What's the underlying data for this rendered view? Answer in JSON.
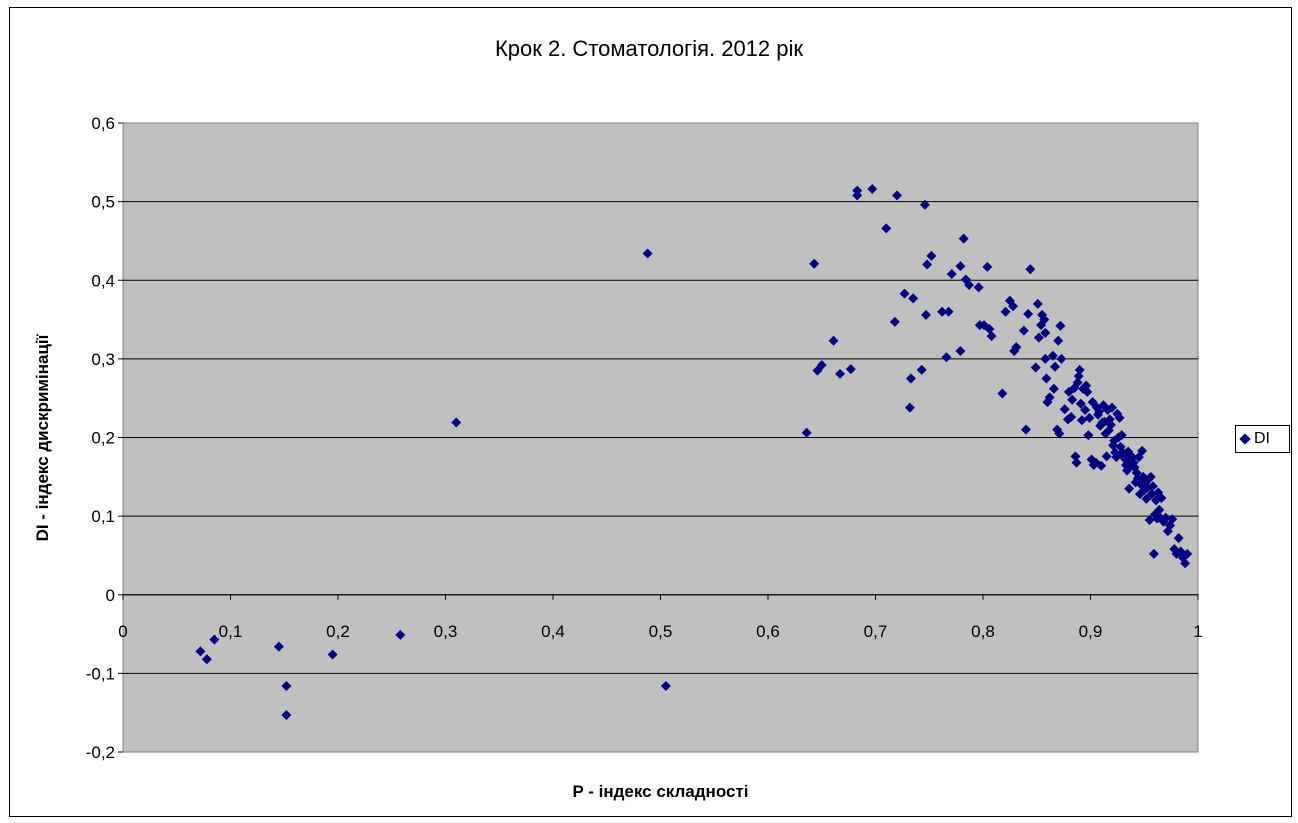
{
  "chart_data": {
    "type": "scatter",
    "title": "Крок 2. Стоматологія. 2012 рік",
    "xlabel": "P - індекс складності",
    "ylabel": "DI - індекс дискримінації",
    "xlim": [
      0,
      1
    ],
    "ylim": [
      -0.2,
      0.6
    ],
    "x_ticks": [
      "0",
      "0,1",
      "0,2",
      "0,3",
      "0,4",
      "0,5",
      "0,6",
      "0,7",
      "0,8",
      "0,9",
      "1"
    ],
    "y_ticks": [
      "0,6",
      "0,5",
      "0,4",
      "0,3",
      "0,2",
      "0,1",
      "0",
      "-0,1",
      "-0,2"
    ],
    "grid": "horizontal",
    "legend_position": "right",
    "plot_background": "#c0c0c0",
    "marker_color": "#000080",
    "series": [
      {
        "name": "DI",
        "points": [
          [
            0.072,
            -0.072
          ],
          [
            0.078,
            -0.082
          ],
          [
            0.085,
            -0.057
          ],
          [
            0.145,
            -0.066
          ],
          [
            0.152,
            -0.116
          ],
          [
            0.152,
            -0.153
          ],
          [
            0.195,
            -0.076
          ],
          [
            0.258,
            -0.051
          ],
          [
            0.31,
            0.219
          ],
          [
            0.488,
            0.434
          ],
          [
            0.505,
            -0.116
          ],
          [
            0.636,
            0.206
          ],
          [
            0.643,
            0.421
          ],
          [
            0.646,
            0.285
          ],
          [
            0.65,
            0.292
          ],
          [
            0.661,
            0.323
          ],
          [
            0.667,
            0.281
          ],
          [
            0.677,
            0.287
          ],
          [
            0.683,
            0.514
          ],
          [
            0.683,
            0.508
          ],
          [
            0.697,
            0.516
          ],
          [
            0.71,
            0.466
          ],
          [
            0.718,
            0.347
          ],
          [
            0.72,
            0.508
          ],
          [
            0.727,
            0.383
          ],
          [
            0.732,
            0.238
          ],
          [
            0.733,
            0.275
          ],
          [
            0.735,
            0.377
          ],
          [
            0.743,
            0.286
          ],
          [
            0.746,
            0.496
          ],
          [
            0.747,
            0.356
          ],
          [
            0.748,
            0.42
          ],
          [
            0.752,
            0.431
          ],
          [
            0.762,
            0.36
          ],
          [
            0.766,
            0.302
          ],
          [
            0.768,
            0.36
          ],
          [
            0.771,
            0.408
          ],
          [
            0.779,
            0.418
          ],
          [
            0.779,
            0.31
          ],
          [
            0.782,
            0.453
          ],
          [
            0.784,
            0.401
          ],
          [
            0.787,
            0.394
          ],
          [
            0.796,
            0.391
          ],
          [
            0.797,
            0.343
          ],
          [
            0.801,
            0.343
          ],
          [
            0.804,
            0.417
          ],
          [
            0.806,
            0.338
          ],
          [
            0.808,
            0.329
          ],
          [
            0.818,
            0.256
          ],
          [
            0.821,
            0.36
          ],
          [
            0.825,
            0.374
          ],
          [
            0.828,
            0.367
          ],
          [
            0.829,
            0.31
          ],
          [
            0.831,
            0.315
          ],
          [
            0.838,
            0.336
          ],
          [
            0.84,
            0.21
          ],
          [
            0.842,
            0.357
          ],
          [
            0.844,
            0.414
          ],
          [
            0.849,
            0.289
          ],
          [
            0.851,
            0.37
          ],
          [
            0.852,
            0.327
          ],
          [
            0.854,
            0.343
          ],
          [
            0.855,
            0.356
          ],
          [
            0.857,
            0.35
          ],
          [
            0.858,
            0.333
          ],
          [
            0.858,
            0.3
          ],
          [
            0.859,
            0.275
          ],
          [
            0.86,
            0.245
          ],
          [
            0.862,
            0.251
          ],
          [
            0.865,
            0.304
          ],
          [
            0.866,
            0.262
          ],
          [
            0.867,
            0.29
          ],
          [
            0.869,
            0.21
          ],
          [
            0.87,
            0.323
          ],
          [
            0.871,
            0.205
          ],
          [
            0.872,
            0.342
          ],
          [
            0.873,
            0.3
          ],
          [
            0.876,
            0.236
          ],
          [
            0.879,
            0.223
          ],
          [
            0.88,
            0.258
          ],
          [
            0.882,
            0.226
          ],
          [
            0.883,
            0.248
          ],
          [
            0.885,
            0.263
          ],
          [
            0.886,
            0.176
          ],
          [
            0.887,
            0.168
          ],
          [
            0.888,
            0.27
          ],
          [
            0.889,
            0.278
          ],
          [
            0.89,
            0.286
          ],
          [
            0.891,
            0.243
          ],
          [
            0.892,
            0.222
          ],
          [
            0.893,
            0.262
          ],
          [
            0.895,
            0.235
          ],
          [
            0.896,
            0.266
          ],
          [
            0.897,
            0.258
          ],
          [
            0.898,
            0.203
          ],
          [
            0.899,
            0.225
          ],
          [
            0.901,
            0.172
          ],
          [
            0.902,
            0.245
          ],
          [
            0.903,
            0.165
          ],
          [
            0.905,
            0.168
          ],
          [
            0.906,
            0.238
          ],
          [
            0.907,
            0.229
          ],
          [
            0.908,
            0.233
          ],
          [
            0.909,
            0.215
          ],
          [
            0.91,
            0.164
          ],
          [
            0.911,
            0.219
          ],
          [
            0.912,
            0.241
          ],
          [
            0.913,
            0.22
          ],
          [
            0.914,
            0.205
          ],
          [
            0.915,
            0.176
          ],
          [
            0.916,
            0.235
          ],
          [
            0.917,
            0.209
          ],
          [
            0.918,
            0.223
          ],
          [
            0.919,
            0.216
          ],
          [
            0.92,
            0.238
          ],
          [
            0.921,
            0.19
          ],
          [
            0.922,
            0.196
          ],
          [
            0.923,
            0.181
          ],
          [
            0.924,
            0.175
          ],
          [
            0.925,
            0.23
          ],
          [
            0.926,
            0.2
          ],
          [
            0.927,
            0.225
          ],
          [
            0.928,
            0.188
          ],
          [
            0.929,
            0.203
          ],
          [
            0.93,
            0.181
          ],
          [
            0.931,
            0.178
          ],
          [
            0.932,
            0.173
          ],
          [
            0.933,
            0.165
          ],
          [
            0.934,
            0.158
          ],
          [
            0.935,
            0.182
          ],
          [
            0.936,
            0.135
          ],
          [
            0.937,
            0.172
          ],
          [
            0.938,
            0.165
          ],
          [
            0.939,
            0.175
          ],
          [
            0.94,
            0.168
          ],
          [
            0.941,
            0.162
          ],
          [
            0.942,
            0.143
          ],
          [
            0.943,
            0.155
          ],
          [
            0.944,
            0.148
          ],
          [
            0.945,
            0.175
          ],
          [
            0.946,
            0.128
          ],
          [
            0.947,
            0.14
          ],
          [
            0.948,
            0.183
          ],
          [
            0.949,
            0.15
          ],
          [
            0.95,
            0.133
          ],
          [
            0.951,
            0.142
          ],
          [
            0.952,
            0.122
          ],
          [
            0.953,
            0.136
          ],
          [
            0.954,
            0.147
          ],
          [
            0.955,
            0.095
          ],
          [
            0.956,
            0.15
          ],
          [
            0.957,
            0.128
          ],
          [
            0.958,
            0.138
          ],
          [
            0.959,
            0.052
          ],
          [
            0.96,
            0.102
          ],
          [
            0.961,
            0.12
          ],
          [
            0.962,
            0.097
          ],
          [
            0.963,
            0.13
          ],
          [
            0.964,
            0.108
          ],
          [
            0.965,
            0.098
          ],
          [
            0.966,
            0.123
          ],
          [
            0.968,
            0.093
          ],
          [
            0.97,
            0.098
          ],
          [
            0.972,
            0.081
          ],
          [
            0.974,
            0.088
          ],
          [
            0.976,
            0.096
          ],
          [
            0.978,
            0.058
          ],
          [
            0.98,
            0.052
          ],
          [
            0.982,
            0.072
          ],
          [
            0.984,
            0.055
          ],
          [
            0.986,
            0.047
          ],
          [
            0.988,
            0.04
          ],
          [
            0.99,
            0.052
          ]
        ]
      }
    ]
  }
}
